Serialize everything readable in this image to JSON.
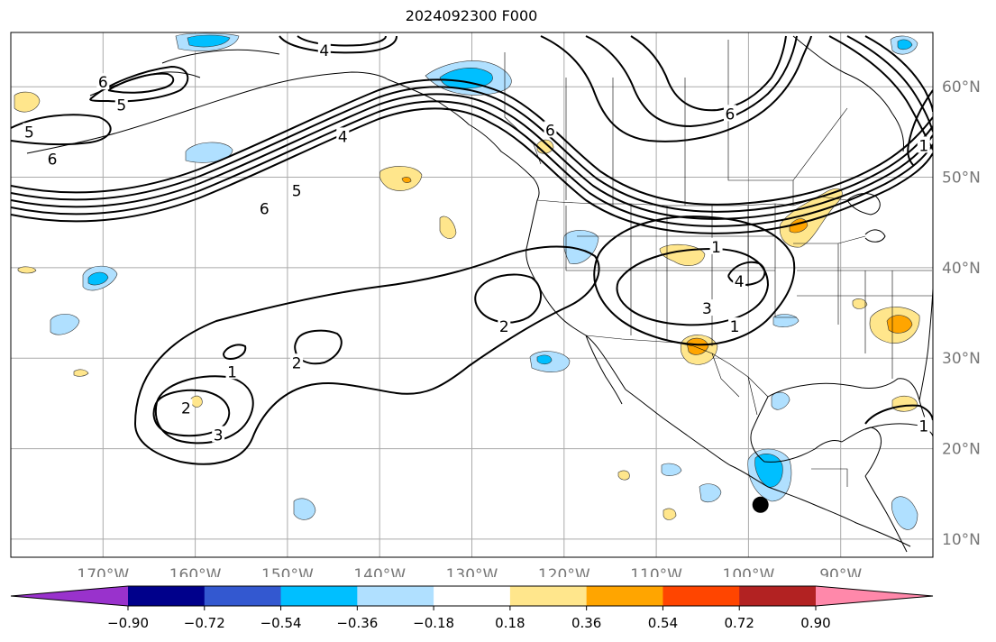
{
  "title": "2024092300 F000",
  "map": {
    "lon_labels": [
      "170°W",
      "160°W",
      "150°W",
      "140°W",
      "130°W",
      "120°W",
      "110°W",
      "100°W",
      "90°W"
    ],
    "lat_labels": [
      "60°N",
      "50°N",
      "40°N",
      "30°N",
      "20°N",
      "10°N"
    ],
    "lon_values": [
      -170,
      -160,
      -150,
      -140,
      -130,
      -120,
      -110,
      -100,
      -90
    ],
    "lat_values": [
      60,
      50,
      40,
      30,
      20,
      10
    ],
    "lon_range": [
      -180,
      -80
    ],
    "lat_range": [
      8,
      66
    ],
    "label_color": "#777777",
    "contour_labels": [
      {
        "text": "4",
        "lon": -146,
        "lat": 64
      },
      {
        "text": "6",
        "lon": -170,
        "lat": 60.5
      },
      {
        "text": "5",
        "lon": -168,
        "lat": 58
      },
      {
        "text": "5",
        "lon": -178,
        "lat": 55
      },
      {
        "text": "6",
        "lon": -175.5,
        "lat": 52
      },
      {
        "text": "6",
        "lon": -152.5,
        "lat": 46.5
      },
      {
        "text": "5",
        "lon": -149,
        "lat": 48.5
      },
      {
        "text": "4",
        "lon": -144,
        "lat": 54.5
      },
      {
        "text": "6",
        "lon": -121.5,
        "lat": 55.2
      },
      {
        "text": "6",
        "lon": -102,
        "lat": 57
      },
      {
        "text": "1",
        "lon": -103.5,
        "lat": 42.3
      },
      {
        "text": "4",
        "lon": -101,
        "lat": 38.5
      },
      {
        "text": "3",
        "lon": -104.5,
        "lat": 35.5
      },
      {
        "text": "1",
        "lon": -101.5,
        "lat": 33.5
      },
      {
        "text": "2",
        "lon": -126.5,
        "lat": 33.5
      },
      {
        "text": "2",
        "lon": -149,
        "lat": 29.5
      },
      {
        "text": "1",
        "lon": -156,
        "lat": 28.5
      },
      {
        "text": "2",
        "lon": -161,
        "lat": 24.5
      },
      {
        "text": "3",
        "lon": -157.5,
        "lat": 21.5
      },
      {
        "text": "1",
        "lon": -81,
        "lat": 53.5
      },
      {
        "text": "1",
        "lon": -81,
        "lat": 22.5
      }
    ],
    "marker": {
      "lon": -98.7,
      "lat": 13.8
    }
  },
  "colorbar": {
    "tick_labels": [
      "−0.90",
      "−0.72",
      "−0.54",
      "−0.36",
      "−0.18",
      "0.18",
      "0.36",
      "0.54",
      "0.72",
      "0.90"
    ],
    "colors": [
      "#9932cc",
      "#00008b",
      "#3358d0",
      "#00bfff",
      "#b0e0ff",
      "#ffffff",
      "#ffe68c",
      "#ffa500",
      "#ff4500",
      "#b22222",
      "#ff88aa"
    ]
  }
}
